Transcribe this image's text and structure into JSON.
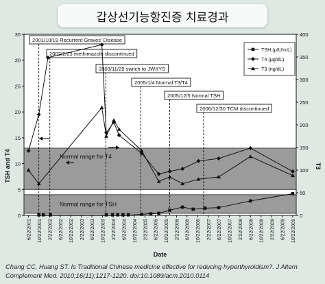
{
  "page_title": "갑상선기능항진증 치료경과",
  "citation": "Chang CC, Huang ST. Is Traditional Chinese medicine effective for reducing hyperthyroidism?. J Altern Complement Med. 2010;16(11):1217-1220. doi:10.1089/acm.2010.0114",
  "chart_data": {
    "type": "line",
    "xlabel": "Date",
    "ylabel_left": "TSH and T4",
    "ylabel_right": "T3",
    "ylim_left": [
      0,
      35
    ],
    "ylim_right": [
      0,
      400
    ],
    "yticks_left": [
      0,
      5,
      10,
      15,
      20,
      25,
      30,
      35
    ],
    "yticks_right": [
      0,
      50,
      100,
      150,
      200,
      250,
      300,
      350,
      400
    ],
    "x_ticks": [
      "6/22/2001",
      "10/22/2001",
      "2/22/2002",
      "6/22/2002",
      "10/22/2002",
      "2/22/2003",
      "6/22/2003",
      "10/22/2003",
      "2/22/2004",
      "6/22/2004",
      "10/22/2004",
      "2/22/2005",
      "6/22/2005",
      "10/22/2005",
      "2/22/2006",
      "6/22/2006",
      "10/22/2006",
      "2/22/2007",
      "6/22/2007",
      "10/22/2007",
      "2/22/2008",
      "6/22/2008",
      "10/22/2008",
      "2/22/2009",
      "6/22/2009",
      "10/22/2009"
    ],
    "grid": false,
    "legend_position": "top-right",
    "series": [
      {
        "name": "TSH (μIU/mL)",
        "axis": "left",
        "marker": "square",
        "color": "#111111",
        "points": [
          [
            "10/19/2001",
            0.1
          ],
          [
            "12/10/2001",
            0.1
          ],
          [
            "3/1/2002",
            0.1
          ],
          [
            "12/5/2003",
            0.1
          ],
          [
            "2/15/2004",
            0.1
          ],
          [
            "4/15/2004",
            0.1
          ],
          [
            "6/15/2004",
            0.1
          ],
          [
            "8/15/2004",
            0.1
          ],
          [
            "1/15/2005",
            0.2
          ],
          [
            "5/1/2005",
            0.3
          ],
          [
            "8/1/2005",
            0.4
          ],
          [
            "12/5/2005",
            1.0
          ],
          [
            "5/1/2006",
            1.6
          ],
          [
            "9/1/2006",
            1.2
          ],
          [
            "1/15/2007",
            1.4
          ],
          [
            "6/22/2007",
            1.5
          ],
          [
            "6/22/2008",
            2.8
          ],
          [
            "10/22/2009",
            4.2
          ]
        ]
      },
      {
        "name": "T4 (μg/dL)",
        "axis": "left",
        "marker": "diamond",
        "color": "#111111",
        "points": [
          [
            "6/22/2001",
            12.5
          ],
          [
            "10/19/2001",
            19.5
          ],
          [
            "2/1/2002",
            30.5
          ],
          [
            "10/15/2003",
            33
          ],
          [
            "12/5/2003",
            16
          ],
          [
            "3/1/2004",
            18
          ],
          [
            "5/1/2004",
            15.5
          ],
          [
            "1/15/2005",
            12
          ],
          [
            "8/1/2005",
            8
          ],
          [
            "12/5/2005",
            8.5
          ],
          [
            "5/1/2006",
            9
          ],
          [
            "11/1/2006",
            10.5
          ],
          [
            "6/22/2007",
            11
          ],
          [
            "6/22/2008",
            13
          ],
          [
            "10/22/2009",
            8.5
          ]
        ]
      },
      {
        "name": "T3 (ng/dL)",
        "axis": "right",
        "marker": "triangle",
        "color": "#111111",
        "points": [
          [
            "6/22/2001",
            100
          ],
          [
            "10/19/2001",
            70
          ],
          [
            "10/15/2003",
            238
          ],
          [
            "12/5/2003",
            175
          ],
          [
            "3/1/2004",
            210
          ],
          [
            "5/1/2004",
            190
          ],
          [
            "1/15/2005",
            143
          ],
          [
            "8/1/2005",
            75
          ],
          [
            "12/5/2005",
            85
          ],
          [
            "5/1/2006",
            70
          ],
          [
            "11/1/2006",
            80
          ],
          [
            "6/22/2007",
            85
          ],
          [
            "6/22/2008",
            130
          ],
          [
            "10/22/2009",
            88
          ]
        ]
      }
    ],
    "normal_ranges": [
      {
        "label": "Normal range for T4",
        "axis": "left",
        "range": [
          5,
          13
        ]
      },
      {
        "label": "Normal range for TSH",
        "axis": "left",
        "range": [
          0.4,
          4.0
        ]
      }
    ],
    "events": [
      {
        "label": "2001/10/19 Recurrent Graves' Disease",
        "date": "10/19/2001"
      },
      {
        "label": "2002/2/23 methimazole discontinued",
        "date": "2/23/2002"
      },
      {
        "label": "2003/11/29 switch to JWXYS",
        "date": "11/29/2003"
      },
      {
        "label": "2005/1/4 Normal T3/T4",
        "date": "1/4/2005"
      },
      {
        "label": "2005/12/5 Normal TSH",
        "date": "12/5/2005"
      },
      {
        "label": "2006/12/30 TCM discontinued",
        "date": "12/30/2006"
      }
    ]
  }
}
